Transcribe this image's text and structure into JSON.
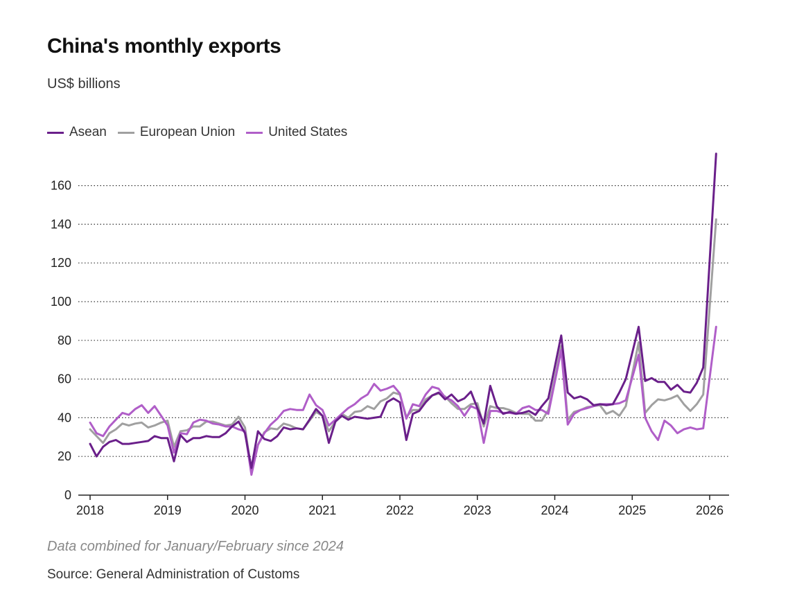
{
  "chart_data": {
    "type": "line",
    "title": "China's monthly exports",
    "subtitle": "US$ billions",
    "note": "Data combined for January/February since 2024",
    "source": "Source: General Administration of Customs",
    "ylim": [
      0,
      170
    ],
    "yticks": [
      0,
      20,
      40,
      60,
      80,
      100,
      120,
      140,
      160
    ],
    "xlim": [
      2018,
      2026.2
    ],
    "xticks": [
      "2018",
      "2019",
      "2020",
      "2021",
      "2022",
      "2023",
      "2024",
      "2025",
      "2026"
    ],
    "grid": "horizontal dotted",
    "legend_position": "top-left",
    "series": [
      {
        "name": "Asean",
        "color": "#6a1f8a",
        "points": [
          [
            2018.0,
            26.5
          ],
          [
            2018.083,
            20
          ],
          [
            2018.167,
            25
          ],
          [
            2018.25,
            27.5
          ],
          [
            2018.333,
            28.5
          ],
          [
            2018.417,
            26.5
          ],
          [
            2018.5,
            26.5
          ],
          [
            2018.583,
            27
          ],
          [
            2018.667,
            27.5
          ],
          [
            2018.75,
            28
          ],
          [
            2018.833,
            30.5
          ],
          [
            2018.917,
            29.5
          ],
          [
            2019.0,
            29.5
          ],
          [
            2019.083,
            17.5
          ],
          [
            2019.167,
            31
          ],
          [
            2019.25,
            27.5
          ],
          [
            2019.333,
            29.5
          ],
          [
            2019.417,
            29.5
          ],
          [
            2019.5,
            30.5
          ],
          [
            2019.583,
            30
          ],
          [
            2019.667,
            30
          ],
          [
            2019.75,
            32
          ],
          [
            2019.833,
            35.5
          ],
          [
            2019.917,
            38
          ],
          [
            2020.0,
            32
          ],
          [
            2020.083,
            14
          ],
          [
            2020.167,
            33
          ],
          [
            2020.25,
            29
          ],
          [
            2020.333,
            28
          ],
          [
            2020.417,
            30.5
          ],
          [
            2020.5,
            35
          ],
          [
            2020.583,
            34
          ],
          [
            2020.667,
            34.5
          ],
          [
            2020.75,
            34
          ],
          [
            2020.833,
            39
          ],
          [
            2020.917,
            44.5
          ],
          [
            2021.0,
            41
          ],
          [
            2021.083,
            27
          ],
          [
            2021.167,
            38
          ],
          [
            2021.25,
            41
          ],
          [
            2021.333,
            39
          ],
          [
            2021.417,
            40.5
          ],
          [
            2021.5,
            40
          ],
          [
            2021.583,
            39.5
          ],
          [
            2021.667,
            40
          ],
          [
            2021.75,
            40.5
          ],
          [
            2021.833,
            48
          ],
          [
            2021.917,
            50
          ],
          [
            2022.0,
            48
          ],
          [
            2022.083,
            28.5
          ],
          [
            2022.167,
            42
          ],
          [
            2022.25,
            43.5
          ],
          [
            2022.333,
            48
          ],
          [
            2022.417,
            51.5
          ],
          [
            2022.5,
            53
          ],
          [
            2022.583,
            49.5
          ],
          [
            2022.667,
            52
          ],
          [
            2022.75,
            48.5
          ],
          [
            2022.833,
            50
          ],
          [
            2022.917,
            53.5
          ],
          [
            2023.0,
            45
          ],
          [
            2023.083,
            37
          ],
          [
            2023.167,
            56.5
          ],
          [
            2023.25,
            46
          ],
          [
            2023.333,
            42
          ],
          [
            2023.417,
            43
          ],
          [
            2023.5,
            42
          ],
          [
            2023.583,
            42.5
          ],
          [
            2023.667,
            43.5
          ],
          [
            2023.75,
            41.5
          ],
          [
            2023.833,
            46
          ],
          [
            2023.917,
            50
          ],
          [
            2024.083,
            82.5
          ],
          [
            2024.167,
            53
          ],
          [
            2024.25,
            50
          ],
          [
            2024.333,
            51
          ],
          [
            2024.417,
            49.5
          ],
          [
            2024.5,
            46.5
          ],
          [
            2024.583,
            47
          ],
          [
            2024.667,
            46.5
          ],
          [
            2024.75,
            47
          ],
          [
            2024.833,
            53
          ],
          [
            2024.917,
            60
          ],
          [
            2025.083,
            87
          ],
          [
            2025.167,
            59
          ],
          [
            2025.25,
            60.5
          ],
          [
            2025.333,
            58.5
          ],
          [
            2025.417,
            58.5
          ],
          [
            2025.5,
            54.5
          ],
          [
            2025.583,
            57
          ],
          [
            2025.667,
            53.5
          ],
          [
            2025.75,
            53
          ],
          [
            2025.833,
            58
          ],
          [
            2025.917,
            66
          ],
          [
            2026.083,
            176.5
          ]
        ]
      },
      {
        "name": "European Union",
        "color": "#a0a0a0",
        "points": [
          [
            2018.0,
            34
          ],
          [
            2018.083,
            30.5
          ],
          [
            2018.167,
            27
          ],
          [
            2018.25,
            32
          ],
          [
            2018.333,
            34
          ],
          [
            2018.417,
            37
          ],
          [
            2018.5,
            36
          ],
          [
            2018.583,
            37
          ],
          [
            2018.667,
            37.5
          ],
          [
            2018.75,
            35
          ],
          [
            2018.833,
            36
          ],
          [
            2018.917,
            37.5
          ],
          [
            2019.0,
            38.5
          ],
          [
            2019.083,
            25
          ],
          [
            2019.167,
            33
          ],
          [
            2019.25,
            33.5
          ],
          [
            2019.333,
            35.5
          ],
          [
            2019.417,
            35.5
          ],
          [
            2019.5,
            38
          ],
          [
            2019.583,
            38
          ],
          [
            2019.667,
            37
          ],
          [
            2019.75,
            36
          ],
          [
            2019.833,
            36.5
          ],
          [
            2019.917,
            40.5
          ],
          [
            2020.0,
            35
          ],
          [
            2020.083,
            12
          ],
          [
            2020.167,
            26
          ],
          [
            2020.25,
            32.5
          ],
          [
            2020.333,
            34.5
          ],
          [
            2020.417,
            34
          ],
          [
            2020.5,
            37
          ],
          [
            2020.583,
            36
          ],
          [
            2020.667,
            34.5
          ],
          [
            2020.75,
            34
          ],
          [
            2020.833,
            38.5
          ],
          [
            2020.917,
            43
          ],
          [
            2021.0,
            41
          ],
          [
            2021.083,
            33
          ],
          [
            2021.167,
            38
          ],
          [
            2021.25,
            42
          ],
          [
            2021.333,
            40
          ],
          [
            2021.417,
            43
          ],
          [
            2021.5,
            43.5
          ],
          [
            2021.583,
            46
          ],
          [
            2021.667,
            44.5
          ],
          [
            2021.75,
            48.5
          ],
          [
            2021.833,
            50
          ],
          [
            2021.917,
            53
          ],
          [
            2022.0,
            52
          ],
          [
            2022.083,
            40.5
          ],
          [
            2022.167,
            44
          ],
          [
            2022.25,
            44
          ],
          [
            2022.333,
            49.5
          ],
          [
            2022.417,
            51.5
          ],
          [
            2022.5,
            52.5
          ],
          [
            2022.583,
            51
          ],
          [
            2022.667,
            47.5
          ],
          [
            2022.75,
            44.5
          ],
          [
            2022.833,
            44.5
          ],
          [
            2022.917,
            47
          ],
          [
            2023.0,
            47.5
          ],
          [
            2023.083,
            35.5
          ],
          [
            2023.167,
            46
          ],
          [
            2023.25,
            45
          ],
          [
            2023.333,
            45
          ],
          [
            2023.417,
            44
          ],
          [
            2023.5,
            42.5
          ],
          [
            2023.583,
            42
          ],
          [
            2023.667,
            42
          ],
          [
            2023.75,
            38.5
          ],
          [
            2023.833,
            38.5
          ],
          [
            2023.917,
            44
          ],
          [
            2024.083,
            77
          ],
          [
            2024.167,
            39
          ],
          [
            2024.25,
            43
          ],
          [
            2024.333,
            44
          ],
          [
            2024.417,
            45.5
          ],
          [
            2024.5,
            46
          ],
          [
            2024.583,
            46.5
          ],
          [
            2024.667,
            42
          ],
          [
            2024.75,
            43.5
          ],
          [
            2024.833,
            41
          ],
          [
            2024.917,
            46
          ],
          [
            2025.083,
            79
          ],
          [
            2025.167,
            42.5
          ],
          [
            2025.25,
            46.5
          ],
          [
            2025.333,
            49.5
          ],
          [
            2025.417,
            49
          ],
          [
            2025.5,
            50
          ],
          [
            2025.583,
            51.5
          ],
          [
            2025.667,
            47
          ],
          [
            2025.75,
            43.5
          ],
          [
            2025.833,
            47
          ],
          [
            2025.917,
            52
          ],
          [
            2026.083,
            142.5
          ]
        ]
      },
      {
        "name": "United States",
        "color": "#b05ec8",
        "points": [
          [
            2018.0,
            37.5
          ],
          [
            2018.083,
            32
          ],
          [
            2018.167,
            30.5
          ],
          [
            2018.25,
            35.5
          ],
          [
            2018.333,
            39
          ],
          [
            2018.417,
            42.5
          ],
          [
            2018.5,
            41.5
          ],
          [
            2018.583,
            44.5
          ],
          [
            2018.667,
            46.5
          ],
          [
            2018.75,
            42.5
          ],
          [
            2018.833,
            46
          ],
          [
            2018.917,
            41
          ],
          [
            2019.0,
            36
          ],
          [
            2019.083,
            22
          ],
          [
            2019.167,
            32
          ],
          [
            2019.25,
            31.5
          ],
          [
            2019.333,
            37.5
          ],
          [
            2019.417,
            39
          ],
          [
            2019.5,
            38.5
          ],
          [
            2019.583,
            37
          ],
          [
            2019.667,
            36.5
          ],
          [
            2019.75,
            35.5
          ],
          [
            2019.833,
            35.5
          ],
          [
            2019.917,
            34
          ],
          [
            2020.0,
            33
          ],
          [
            2020.083,
            10.5
          ],
          [
            2020.167,
            26
          ],
          [
            2020.25,
            32
          ],
          [
            2020.333,
            36.5
          ],
          [
            2020.417,
            39.5
          ],
          [
            2020.5,
            43.5
          ],
          [
            2020.583,
            44.5
          ],
          [
            2020.667,
            44
          ],
          [
            2020.75,
            44
          ],
          [
            2020.833,
            52
          ],
          [
            2020.917,
            46.5
          ],
          [
            2021.0,
            44
          ],
          [
            2021.083,
            36
          ],
          [
            2021.167,
            39
          ],
          [
            2021.25,
            42
          ],
          [
            2021.333,
            45
          ],
          [
            2021.417,
            47
          ],
          [
            2021.5,
            50
          ],
          [
            2021.583,
            52
          ],
          [
            2021.667,
            57.5
          ],
          [
            2021.75,
            54
          ],
          [
            2021.833,
            55
          ],
          [
            2021.917,
            56.5
          ],
          [
            2022.0,
            52.5
          ],
          [
            2022.083,
            39.5
          ],
          [
            2022.167,
            47
          ],
          [
            2022.25,
            46
          ],
          [
            2022.333,
            52
          ],
          [
            2022.417,
            56
          ],
          [
            2022.5,
            55
          ],
          [
            2022.583,
            50.5
          ],
          [
            2022.667,
            49
          ],
          [
            2022.75,
            46
          ],
          [
            2022.833,
            41
          ],
          [
            2022.917,
            46
          ],
          [
            2023.0,
            44.5
          ],
          [
            2023.083,
            27
          ],
          [
            2023.167,
            43.5
          ],
          [
            2023.25,
            43.5
          ],
          [
            2023.333,
            42.5
          ],
          [
            2023.417,
            42.5
          ],
          [
            2023.5,
            42
          ],
          [
            2023.583,
            45
          ],
          [
            2023.667,
            46
          ],
          [
            2023.75,
            44
          ],
          [
            2023.833,
            44
          ],
          [
            2023.917,
            42
          ],
          [
            2024.083,
            75
          ],
          [
            2024.167,
            36.5
          ],
          [
            2024.25,
            42
          ],
          [
            2024.333,
            44
          ],
          [
            2024.417,
            45
          ],
          [
            2024.5,
            46
          ],
          [
            2024.583,
            47
          ],
          [
            2024.667,
            47
          ],
          [
            2024.75,
            47
          ],
          [
            2024.833,
            47.5
          ],
          [
            2024.917,
            49
          ],
          [
            2025.083,
            72.5
          ],
          [
            2025.167,
            40
          ],
          [
            2025.25,
            33
          ],
          [
            2025.333,
            28.5
          ],
          [
            2025.417,
            38.5
          ],
          [
            2025.5,
            36
          ],
          [
            2025.583,
            32
          ],
          [
            2025.667,
            34
          ],
          [
            2025.75,
            35
          ],
          [
            2025.833,
            34
          ],
          [
            2025.917,
            34.5
          ],
          [
            2026.083,
            87
          ]
        ]
      }
    ]
  }
}
